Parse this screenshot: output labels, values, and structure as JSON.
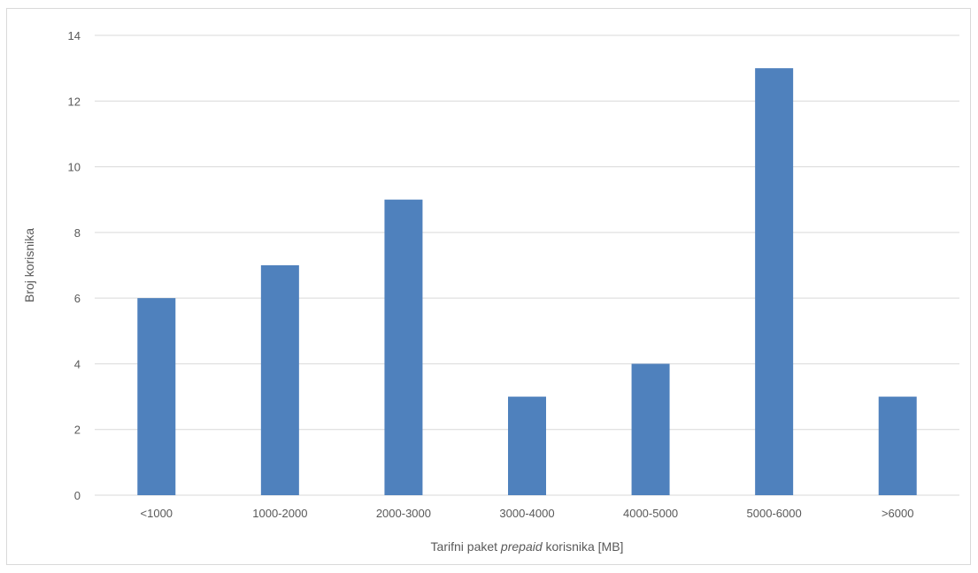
{
  "chart_data": {
    "type": "bar",
    "categories": [
      "<1000",
      "1000-2000",
      "2000-3000",
      "3000-4000",
      "4000-5000",
      "5000-6000",
      ">6000"
    ],
    "values": [
      6,
      7,
      9,
      3,
      4,
      13,
      3
    ],
    "title": "",
    "xlabel": {
      "before": "Tarifni paket ",
      "emphasis": "prepaid",
      "after": " korisnika [MB]"
    },
    "ylabel": "Broj korisnika",
    "ylim": [
      0,
      14
    ],
    "yticks": [
      "0",
      "2",
      "4",
      "6",
      "8",
      "10",
      "12",
      "14"
    ],
    "grid": true,
    "legend": "none",
    "colors": {
      "bar": "#4f81bd",
      "grid": "#d9d9d9",
      "text": "#595959"
    }
  }
}
